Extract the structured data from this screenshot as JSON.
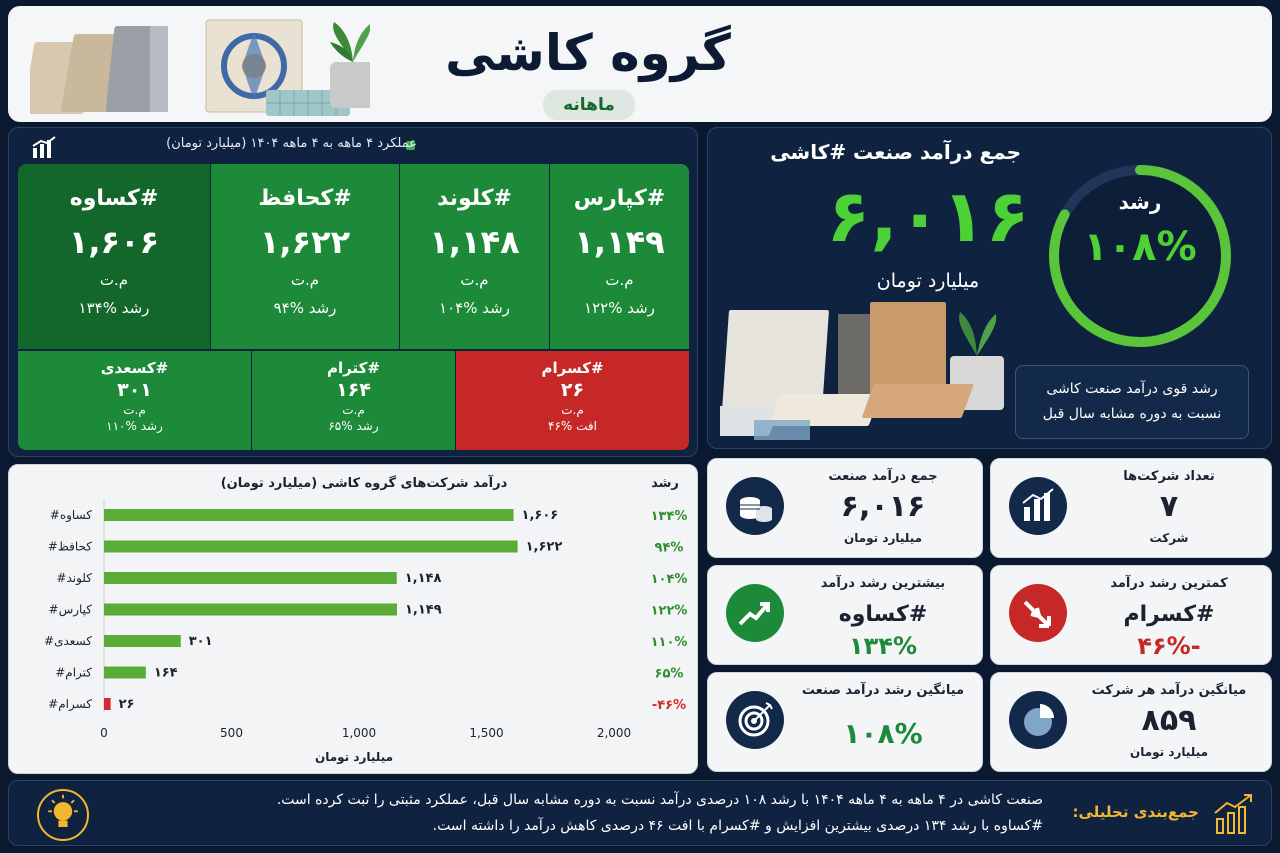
{
  "header": {
    "title": "گروه کاشی",
    "subtitle": "ماهانه"
  },
  "performance": {
    "title": "عملکرد ۴ ماهه به ۴ ماهه ۱۴۰۴ (میلیارد تومان)",
    "companies": [
      {
        "name": "#کپارس",
        "value": "۱,۱۴۹",
        "unit": "م.ت",
        "growth": "رشد %۱۲۲"
      },
      {
        "name": "#کلوند",
        "value": "۱,۱۴۸",
        "unit": "م.ت",
        "growth": "رشد %۱۰۴"
      },
      {
        "name": "#کحافظ",
        "value": "۱,۶۲۲",
        "unit": "م.ت",
        "growth": "رشد %۹۴"
      },
      {
        "name": "#کساوه",
        "value": "۱,۶۰۶",
        "unit": "م.ت",
        "growth": "رشد %۱۳۴"
      },
      {
        "name": "#کسرام",
        "value": "۲۶",
        "unit": "م.ت",
        "growth": "افت  %۴۶"
      },
      {
        "name": "#کترام",
        "value": "۱۶۴",
        "unit": "م.ت",
        "growth": "رشد %۶۵"
      },
      {
        "name": "#کسعدی",
        "value": "۳۰۱",
        "unit": "م.ت",
        "growth": "رشد %۱۱۰"
      }
    ]
  },
  "total": {
    "title": "جمع درآمد صنعت #کاشی",
    "value": "۶,۰۱۶",
    "unit": "میلیارد تومان",
    "growth_label": "رشد",
    "growth_value": "۱۰۸%",
    "growth_fraction": 0.83,
    "note_line1": "رشد قوی درآمد صنعت کاشی",
    "note_line2": "نسبت به دوره مشابه سال قبل"
  },
  "chart_data": {
    "type": "bar",
    "title": "درآمد شرکت‌های گروه کاشی (میلیارد تومان)",
    "growth_header": "رشد",
    "xlabel": "میلیارد تومان",
    "xlim": [
      0,
      2000
    ],
    "ticks": [
      {
        "v": 0,
        "label": "0"
      },
      {
        "v": 500,
        "label": "500"
      },
      {
        "v": 1000,
        "label": "1,000"
      },
      {
        "v": 1500,
        "label": "1,500"
      },
      {
        "v": 2000,
        "label": "2,000"
      }
    ],
    "categories": [
      "#کساوه",
      "#کحافظ",
      "#کلوند",
      "#کپارس",
      "#کسعدی",
      "#کترام",
      "#کسرام"
    ],
    "values": [
      1606,
      1622,
      1148,
      1149,
      301,
      164,
      26
    ],
    "value_labels": [
      "۱,۶۰۶",
      "۱,۶۲۲",
      "۱,۱۴۸",
      "۱,۱۴۹",
      "۳۰۱",
      "۱۶۴",
      "۲۶"
    ],
    "growth": [
      "۱۳۴%",
      "۹۴%",
      "۱۰۴%",
      "۱۲۲%",
      "۱۱۰%",
      "۶۵%",
      "-۴۶%"
    ],
    "colors": {
      "positive": "#5aac36",
      "negative": "#d42a2a"
    }
  },
  "kpis": {
    "count": {
      "title": "تعداد شرکت‌ها",
      "value": "۷",
      "sub": "شرکت"
    },
    "industry_total": {
      "title": "جمع درآمد صنعت",
      "value": "۶,۰۱۶",
      "sub": "میلیارد تومان"
    },
    "lowest": {
      "title": "کمترین رشد درآمد",
      "value": "#کسرام",
      "sub": "-۴۶%"
    },
    "highest": {
      "title": "بیشترین رشد درآمد",
      "value": "#کساوه",
      "sub": "۱۳۴%"
    },
    "avg_company": {
      "title": "میانگین درآمد هر شرکت",
      "value": "۸۵۹",
      "sub": "میلیارد تومان"
    },
    "avg_growth": {
      "title": "میانگین رشد درآمد صنعت",
      "value": "۱۰۸%"
    }
  },
  "footer": {
    "label": "جمع‌بندی تحلیلی:",
    "line1": "صنعت کاشی در ۴ ماهه به ۴ ماهه ۱۴۰۴ با رشد ۱۰۸ درصدی درآمد نسبت به دوره مشابه سال قبل، عملکرد مثبتی را ثبت کرده است.",
    "line2": "#کساوه  با رشد ۱۳۴ درصدی بیشترین افزایش و #کسرام با افت ۴۶ درصدی کاهش درآمد را داشته است."
  },
  "colors": {
    "accent_green": "#4cd137",
    "tile_green": "#1d8a3a",
    "tile_dark_green": "#13672b",
    "tile_red": "#c62828",
    "navy": "#0b1930",
    "gold": "#f2b632"
  }
}
